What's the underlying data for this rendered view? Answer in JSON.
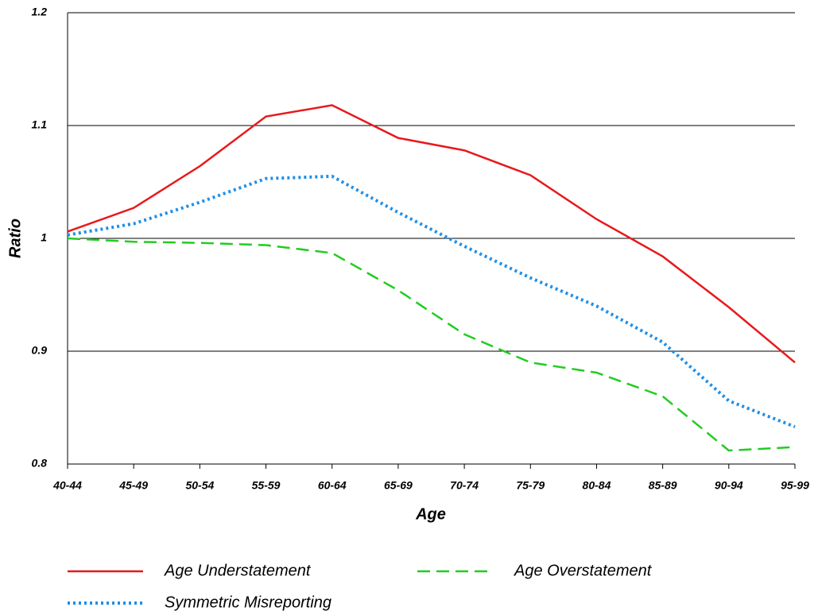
{
  "chart_data": {
    "type": "line",
    "x_label": "Age",
    "y_label": "Ratio",
    "categories": [
      "40-44",
      "45-49",
      "50-54",
      "55-59",
      "60-64",
      "65-69",
      "70-74",
      "75-79",
      "80-84",
      "85-89",
      "90-94",
      "95-99"
    ],
    "series": [
      {
        "name": "Age Understatement",
        "color": "#e8191c",
        "style": "solid",
        "values": [
          1.006,
          1.027,
          1.064,
          1.108,
          1.118,
          1.089,
          1.078,
          1.056,
          1.017,
          0.984,
          0.939,
          0.89
        ]
      },
      {
        "name": "Age Overstatement",
        "color": "#22cc22",
        "style": "dashed",
        "values": [
          1.0,
          0.997,
          0.996,
          0.994,
          0.987,
          0.954,
          0.915,
          0.89,
          0.881,
          0.86,
          0.812,
          0.815
        ]
      },
      {
        "name": "Symmetric Misreporting",
        "color": "#1f8fe8",
        "style": "dotted",
        "values": [
          1.003,
          1.013,
          1.032,
          1.053,
          1.055,
          1.023,
          0.993,
          0.965,
          0.94,
          0.908,
          0.856,
          0.833
        ]
      }
    ],
    "ylim": [
      0.8,
      1.2
    ],
    "yticks": [
      0.8,
      0.9,
      1,
      1.1,
      1.2
    ],
    "grid": true,
    "legend": "bottom"
  }
}
